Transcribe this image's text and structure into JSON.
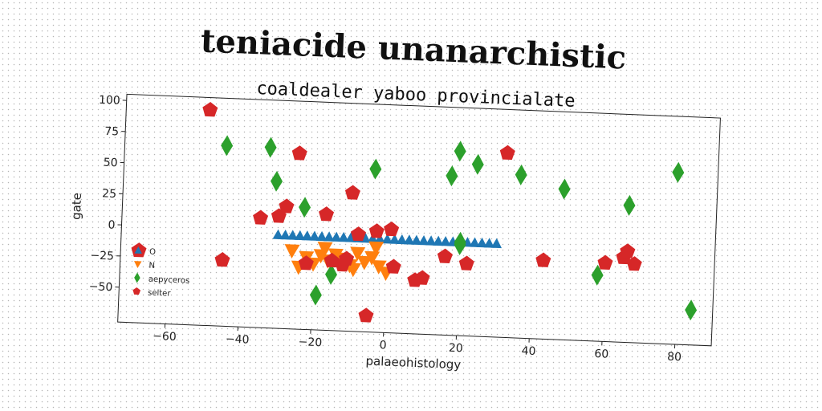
{
  "chart_data": {
    "type": "scatter",
    "title": "teniacide unanarchistic",
    "subtitle": "coaldealer yaboo provincialate",
    "xlabel": "palaeohistology",
    "ylabel": "gate",
    "xlim": [
      -73,
      90
    ],
    "ylim": [
      -78,
      105
    ],
    "xticks": [
      -60,
      -40,
      -20,
      0,
      20,
      40,
      60,
      80
    ],
    "yticks": [
      -50,
      -25,
      0,
      25,
      50,
      75,
      100
    ],
    "xtick_labels": [
      "−60",
      "−40",
      "−20",
      "0",
      "20",
      "40",
      "60",
      "80"
    ],
    "ytick_labels": [
      "−50",
      "−25",
      "0",
      "25",
      "50",
      "75",
      "100"
    ],
    "grid": false,
    "legend_position": "lower-left",
    "series": [
      {
        "name": "O",
        "marker": "triangle-up",
        "color": "#1f77b4",
        "x": [
          -30,
          -28,
          -26,
          -24,
          -22,
          -20,
          -18,
          -16,
          -14,
          -12,
          -10,
          -8,
          -6,
          -4,
          -2,
          0,
          2,
          4,
          6,
          8,
          10,
          12,
          14,
          16,
          18,
          20,
          22,
          24,
          26,
          28,
          30
        ],
        "y": [
          -3,
          -3,
          -3,
          -3,
          -3,
          -3,
          -3,
          -3,
          -3,
          -3,
          -3,
          -3,
          -3,
          -3,
          -3,
          -3,
          -3,
          -3,
          -3,
          -3,
          -3,
          -3,
          -3,
          -3,
          -3,
          -3,
          -3,
          -3,
          -3,
          -3,
          -3
        ]
      },
      {
        "name": "N",
        "marker": "triangle-down",
        "color": "#ff7f0e",
        "x": [
          -26,
          -24,
          -22,
          -20,
          -18,
          -16,
          -14,
          -12,
          -10,
          -8,
          -6,
          -4,
          -2,
          0,
          -17,
          -9,
          -3
        ],
        "y": [
          -15,
          -28,
          -20,
          -25,
          -18,
          -22,
          -17,
          -20,
          -25,
          -15,
          -22,
          -18,
          -25,
          -30,
          -12,
          -28,
          -10
        ]
      },
      {
        "name": "aepyceros",
        "marker": "diamond",
        "color": "#2ca02c",
        "x": [
          -45,
          -33,
          -31,
          -23,
          -19,
          -15,
          -4,
          17,
          19,
          20,
          20,
          24,
          36,
          48,
          58,
          66,
          79,
          84
        ],
        "y": [
          67,
          67,
          40,
          20,
          -50,
          -33,
          53,
          50,
          70,
          -3,
          -5,
          60,
          53,
          43,
          -25,
          32,
          60,
          -50
        ]
      },
      {
        "name": "selter",
        "marker": "pentagon",
        "color": "#d62728",
        "x": [
          -50,
          -68,
          -45,
          -35,
          -30,
          -28,
          -25,
          -22,
          -17,
          -15,
          -12,
          -11,
          -10,
          -8,
          -5,
          -3,
          1,
          2,
          8,
          10,
          16,
          22,
          32,
          43,
          60,
          65,
          66,
          68
        ],
        "y": [
          95,
          -20,
          -25,
          10,
          12,
          20,
          63,
          -25,
          15,
          -22,
          -25,
          -20,
          33,
          0,
          -65,
          3,
          5,
          -25,
          -35,
          -33,
          -15,
          -20,
          70,
          -15,
          -15,
          -10,
          -5,
          -15
        ]
      }
    ]
  }
}
